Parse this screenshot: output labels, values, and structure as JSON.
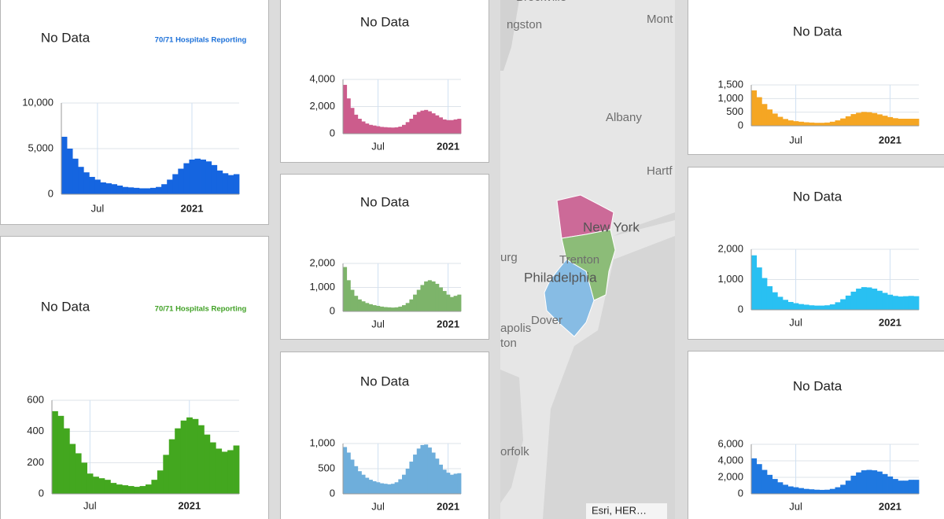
{
  "chart_data": [
    {
      "type": "bar",
      "title": "No Data",
      "subtitle": "70/71 Hospitals Reporting",
      "subtitle_color": "#1a6fd8",
      "color": "#1565e0",
      "categories": [
        null,
        null,
        null,
        null,
        null,
        null,
        "Jul",
        null,
        null,
        null,
        null,
        null,
        null,
        null,
        null,
        null,
        null,
        null,
        null,
        null,
        null,
        null,
        null,
        "2021",
        null,
        null,
        null,
        null,
        null,
        null,
        null,
        null
      ],
      "values": [
        6300,
        5000,
        3900,
        3000,
        2400,
        1900,
        1600,
        1300,
        1200,
        1100,
        950,
        800,
        750,
        700,
        650,
        650,
        700,
        800,
        1100,
        1600,
        2200,
        2800,
        3400,
        3800,
        3900,
        3800,
        3600,
        3200,
        2600,
        2300,
        2100,
        2200
      ],
      "ylim": [
        0,
        10000
      ],
      "yticks": [
        0,
        {
          "value": 5000,
          "label": "5,000"
        },
        {
          "value": 10000,
          "label": "10,000"
        }
      ],
      "grid": true
    },
    {
      "type": "bar",
      "title": "No Data",
      "subtitle": "70/71 Hospitals Reporting",
      "subtitle_color": "#3fa024",
      "color": "#43a71f",
      "categories": [
        null,
        null,
        null,
        null,
        null,
        null,
        "Jul",
        null,
        null,
        null,
        null,
        null,
        null,
        null,
        null,
        null,
        null,
        null,
        null,
        null,
        null,
        null,
        null,
        "2021",
        null,
        null,
        null,
        null,
        null,
        null,
        null,
        null
      ],
      "values": [
        530,
        500,
        420,
        320,
        260,
        200,
        130,
        110,
        100,
        90,
        70,
        60,
        55,
        50,
        45,
        50,
        60,
        90,
        150,
        250,
        350,
        420,
        470,
        490,
        480,
        440,
        380,
        330,
        290,
        270,
        280,
        310
      ],
      "ylim": [
        0,
        600
      ],
      "yticks": [
        0,
        200,
        400,
        600
      ],
      "grid": true
    },
    {
      "type": "bar",
      "title": "No Data",
      "color": "#cc5c8c",
      "categories": [
        null,
        null,
        null,
        null,
        null,
        null,
        null,
        null,
        null,
        "Jul",
        null,
        null,
        null,
        null,
        null,
        null,
        null,
        null,
        null,
        null,
        null,
        null,
        null,
        null,
        null,
        null,
        null,
        null,
        "2021",
        null,
        null,
        null
      ],
      "values": [
        3600,
        2600,
        1900,
        1400,
        1100,
        900,
        750,
        650,
        600,
        550,
        500,
        480,
        460,
        450,
        470,
        520,
        650,
        850,
        1100,
        1400,
        1600,
        1700,
        1750,
        1650,
        1500,
        1350,
        1200,
        1050,
        1000,
        1000,
        1050,
        1100
      ],
      "ylim": [
        0,
        4000
      ],
      "yticks": [
        0,
        {
          "value": 2000,
          "label": "2,000"
        },
        {
          "value": 4000,
          "label": "4,000"
        }
      ],
      "grid": true
    },
    {
      "type": "bar",
      "title": "No Data",
      "color": "#7db46a",
      "categories": [
        null,
        null,
        null,
        null,
        null,
        null,
        null,
        null,
        null,
        "Jul",
        null,
        null,
        null,
        null,
        null,
        null,
        null,
        null,
        null,
        null,
        null,
        null,
        null,
        null,
        null,
        null,
        null,
        null,
        "2021",
        null,
        null,
        null
      ],
      "values": [
        1850,
        1300,
        900,
        650,
        500,
        420,
        350,
        300,
        260,
        230,
        200,
        180,
        170,
        160,
        170,
        200,
        260,
        350,
        500,
        700,
        900,
        1100,
        1250,
        1300,
        1250,
        1150,
        1000,
        850,
        700,
        600,
        650,
        700
      ],
      "ylim": [
        0,
        2000
      ],
      "yticks": [
        0,
        {
          "value": 1000,
          "label": "1,000"
        },
        {
          "value": 2000,
          "label": "2,000"
        }
      ],
      "grid": true
    },
    {
      "type": "bar",
      "title": "No Data",
      "color": "#6eaedb",
      "categories": [
        null,
        null,
        null,
        null,
        null,
        null,
        null,
        null,
        null,
        "Jul",
        null,
        null,
        null,
        null,
        null,
        null,
        null,
        null,
        null,
        null,
        null,
        null,
        null,
        null,
        null,
        null,
        null,
        null,
        "2021",
        null,
        null,
        null
      ],
      "values": [
        930,
        820,
        680,
        550,
        450,
        380,
        320,
        280,
        250,
        230,
        210,
        200,
        190,
        200,
        230,
        290,
        380,
        500,
        640,
        780,
        900,
        970,
        980,
        920,
        820,
        700,
        580,
        480,
        420,
        380,
        400,
        410
      ],
      "ylim": [
        0,
        1000
      ],
      "yticks": [
        0,
        500,
        {
          "value": 1000,
          "label": "1,000"
        }
      ],
      "grid": true
    },
    {
      "type": "bar",
      "title": "No Data",
      "color": "#f5a623",
      "categories": [
        null,
        null,
        null,
        null,
        null,
        null,
        null,
        null,
        "Jul",
        null,
        null,
        null,
        null,
        null,
        null,
        null,
        null,
        null,
        null,
        null,
        null,
        null,
        null,
        null,
        null,
        null,
        "2021",
        null,
        null,
        null,
        null,
        null
      ],
      "values": [
        1300,
        1050,
        800,
        600,
        450,
        330,
        250,
        200,
        170,
        150,
        130,
        120,
        110,
        110,
        120,
        150,
        200,
        270,
        350,
        430,
        480,
        510,
        500,
        470,
        420,
        370,
        320,
        280,
        260,
        260,
        260,
        260
      ],
      "ylim": [
        0,
        1500
      ],
      "yticks": [
        0,
        500,
        {
          "value": 1000,
          "label": "1,000"
        },
        {
          "value": 1500,
          "label": "1,500"
        }
      ],
      "grid": true
    },
    {
      "type": "bar",
      "title": "No Data",
      "color": "#29c0f2",
      "categories": [
        null,
        null,
        null,
        null,
        null,
        null,
        null,
        null,
        "Jul",
        null,
        null,
        null,
        null,
        null,
        null,
        null,
        null,
        null,
        null,
        null,
        null,
        null,
        null,
        null,
        null,
        null,
        "2021",
        null,
        null,
        null,
        null,
        null
      ],
      "values": [
        1800,
        1400,
        1050,
        780,
        580,
        430,
        330,
        260,
        220,
        190,
        170,
        150,
        140,
        140,
        150,
        180,
        250,
        350,
        470,
        600,
        700,
        750,
        740,
        700,
        630,
        560,
        500,
        460,
        440,
        450,
        460,
        450
      ],
      "ylim": [
        0,
        2000
      ],
      "yticks": [
        0,
        {
          "value": 1000,
          "label": "1,000"
        },
        {
          "value": 2000,
          "label": "2,000"
        }
      ],
      "grid": true
    },
    {
      "type": "bar",
      "title": "No Data",
      "color": "#1f78e0",
      "categories": [
        null,
        null,
        null,
        null,
        null,
        null,
        null,
        null,
        "Jul",
        null,
        null,
        null,
        null,
        null,
        null,
        null,
        null,
        null,
        null,
        null,
        null,
        null,
        null,
        null,
        null,
        null,
        "2021",
        null,
        null,
        null,
        null,
        null
      ],
      "values": [
        4300,
        3600,
        2900,
        2300,
        1800,
        1400,
        1100,
        900,
        800,
        700,
        600,
        550,
        500,
        480,
        500,
        600,
        800,
        1100,
        1600,
        2200,
        2600,
        2850,
        2900,
        2850,
        2700,
        2400,
        2100,
        1800,
        1600,
        1600,
        1700,
        1700
      ],
      "ylim": [
        0,
        6000
      ],
      "yticks": [
        0,
        {
          "value": 2000,
          "label": "2,000"
        },
        {
          "value": 4000,
          "label": "4,000"
        },
        {
          "value": 6000,
          "label": "6,000"
        }
      ],
      "grid": true
    }
  ],
  "map": {
    "labels": [
      "Brockville",
      "ngston",
      "Mont",
      "Albany",
      "Hartf",
      "New York",
      "urg",
      "Trenton",
      "Philadelphia",
      "Dover",
      "apolis",
      "ton",
      "orfolk"
    ],
    "attribution": "Esri, HER…"
  }
}
